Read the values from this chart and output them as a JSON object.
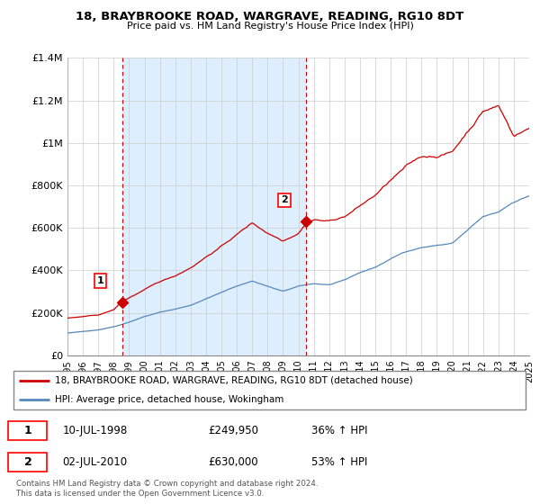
{
  "title": "18, BRAYBROOKE ROAD, WARGRAVE, READING, RG10 8DT",
  "subtitle": "Price paid vs. HM Land Registry's House Price Index (HPI)",
  "legend_line1": "18, BRAYBROOKE ROAD, WARGRAVE, READING, RG10 8DT (detached house)",
  "legend_line2": "HPI: Average price, detached house, Wokingham",
  "footnote": "Contains HM Land Registry data © Crown copyright and database right 2024.\nThis data is licensed under the Open Government Licence v3.0.",
  "sale1_label": "1",
  "sale1_date": "10-JUL-1998",
  "sale1_price": "£249,950",
  "sale1_hpi": "36% ↑ HPI",
  "sale2_label": "2",
  "sale2_date": "02-JUL-2010",
  "sale2_price": "£630,000",
  "sale2_hpi": "53% ↑ HPI",
  "red_color": "#cc0000",
  "blue_color": "#5588bb",
  "shade_color": "#ddeeff",
  "grid_color": "#cccccc",
  "background_color": "#ffffff",
  "ylim": [
    0,
    1400000
  ],
  "yticks": [
    0,
    200000,
    400000,
    600000,
    800000,
    1000000,
    1200000,
    1400000
  ],
  "ytick_labels": [
    "£0",
    "£200K",
    "£400K",
    "£600K",
    "£800K",
    "£1M",
    "£1.2M",
    "£1.4M"
  ],
  "xlim_start": 1995,
  "xlim_end": 2025,
  "marker1_x": 1998.54,
  "marker1_y": 249950,
  "marker2_x": 2010.5,
  "marker2_y": 630000,
  "vline1_x": 1998.54,
  "vline2_x": 2010.5,
  "shade_start": 1998.54,
  "shade_end": 2010.5
}
